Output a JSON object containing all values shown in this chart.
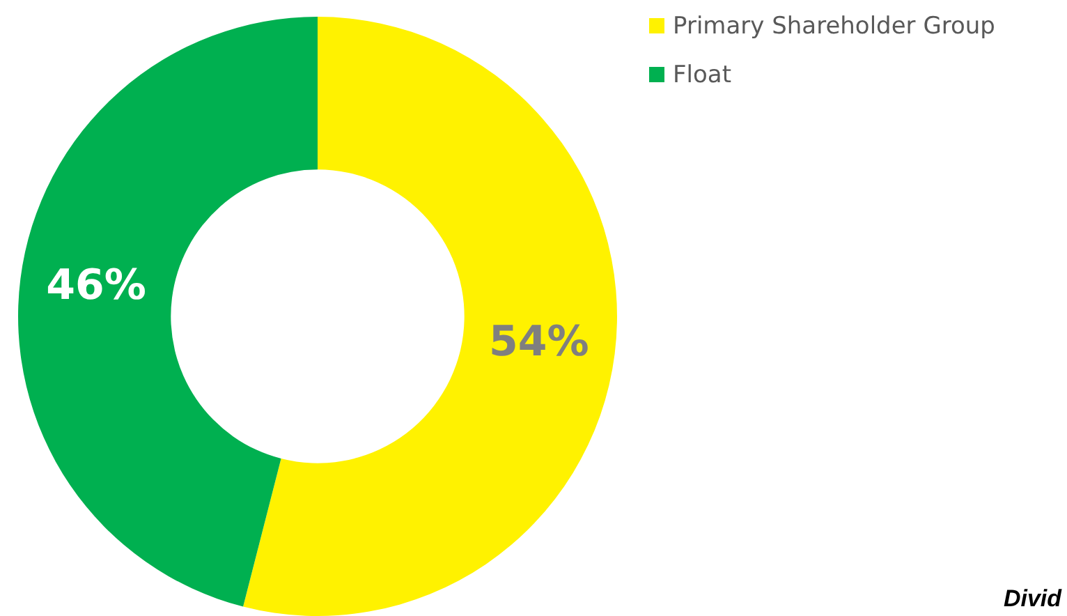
{
  "chart_data": {
    "type": "donut",
    "categories": [
      "Primary Shareholder Group",
      "Float"
    ],
    "values": [
      54,
      46
    ],
    "colors": [
      "#fff200",
      "#00b050"
    ],
    "value_labels": [
      "54%",
      "46%"
    ],
    "legend": "top right",
    "annotations": [
      "Divid"
    ]
  }
}
